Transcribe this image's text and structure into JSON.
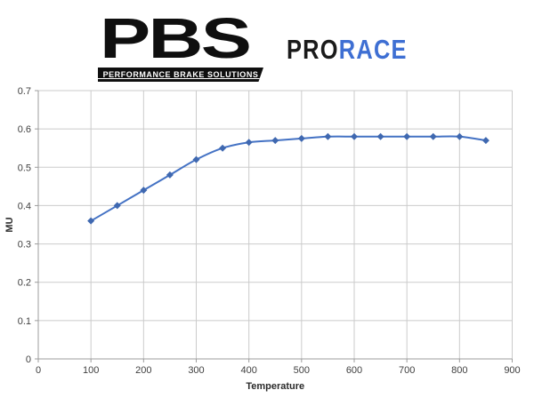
{
  "header": {
    "logo": {
      "acronym": "PBS",
      "tagline": "PERFORMANCE BRAKE SOLUTIONS",
      "color": "#0f0f0f"
    },
    "product": {
      "pro": "PRO",
      "race": "RACE",
      "pro_color": "#1a1a1a",
      "race_color": "#3e6fd3"
    }
  },
  "chart_data": {
    "type": "line",
    "title": "",
    "xlabel": "Temperature",
    "ylabel": "MU",
    "xlim": [
      0,
      900
    ],
    "ylim": [
      0,
      0.7
    ],
    "x_ticks": [
      0,
      100,
      200,
      300,
      400,
      500,
      600,
      700,
      800,
      900
    ],
    "y_ticks": [
      0,
      0.1,
      0.2,
      0.3,
      0.4,
      0.5,
      0.6,
      0.7
    ],
    "y_tick_labels": [
      "0",
      "0.1",
      "0.2",
      "0.3",
      "0.4",
      "0.5",
      "0.6",
      "0.7"
    ],
    "grid": true,
    "legend_position": "none",
    "grid_color": "#cbcbcb",
    "axis_color": "#9c9c9c",
    "tick_text_color": "#3f3f3f",
    "axis_title_color": "#2b2b2b",
    "series": [
      {
        "name": "MU",
        "color": "#4472c4",
        "marker": "diamond",
        "marker_color": "#3f68b0",
        "smooth": true,
        "x": [
          100,
          150,
          200,
          250,
          300,
          350,
          400,
          450,
          500,
          550,
          600,
          650,
          700,
          750,
          800,
          850
        ],
        "y": [
          0.36,
          0.4,
          0.44,
          0.48,
          0.52,
          0.55,
          0.565,
          0.57,
          0.575,
          0.58,
          0.58,
          0.58,
          0.58,
          0.58,
          0.58,
          0.57
        ]
      }
    ]
  }
}
